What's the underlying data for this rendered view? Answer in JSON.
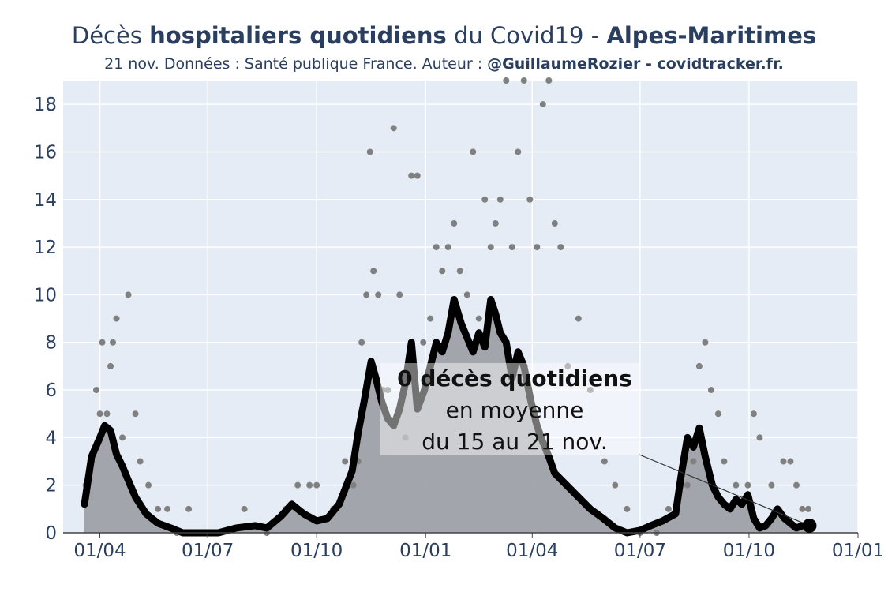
{
  "header": {
    "title_pre": "Décès ",
    "title_bold": "hospitaliers quotidiens",
    "title_mid": " du Covid19 - ",
    "title_region": "Alpes-Maritimes",
    "subtitle_plain": "21 nov. Données : Santé publique France. Auteur : ",
    "subtitle_bold": "@GuillaumeRozier - covidtracker.fr."
  },
  "annotation": {
    "line1": "0 décès quotidiens",
    "line2": "en moyenne",
    "line3": "du 15 au 21 nov."
  },
  "colors": {
    "plot_bg": "#e5ecf6",
    "line": "#000000",
    "area": "#9ea2a8",
    "dots": "#808080",
    "text": "#2a3f5f"
  },
  "chart_data": {
    "type": "line",
    "title": "Décès hospitaliers quotidiens du Covid19 - Alpes-Maritimes",
    "xlabel": "",
    "ylabel": "",
    "x_range": [
      "2020-03-01",
      "2022-01-01"
    ],
    "ylim": [
      0,
      19
    ],
    "y_ticks": [
      0,
      2,
      4,
      6,
      8,
      10,
      12,
      14,
      16,
      18
    ],
    "x_ticks": [
      {
        "date": "2020-04-01",
        "label": "01/04"
      },
      {
        "date": "2020-07-01",
        "label": "01/07"
      },
      {
        "date": "2020-10-01",
        "label": "01/10"
      },
      {
        "date": "2021-01-01",
        "label": "01/01"
      },
      {
        "date": "2021-04-01",
        "label": "01/04"
      },
      {
        "date": "2021-07-01",
        "label": "01/07"
      },
      {
        "date": "2021-10-01",
        "label": "01/10"
      },
      {
        "date": "2022-01-01",
        "label": "01/01"
      }
    ],
    "grid": true,
    "series": [
      {
        "style": "line-with-area",
        "x": [
          "2020-03-19",
          "2020-03-25",
          "2020-04-01",
          "2020-04-05",
          "2020-04-10",
          "2020-04-15",
          "2020-04-20",
          "2020-04-25",
          "2020-05-01",
          "2020-05-10",
          "2020-05-20",
          "2020-05-31",
          "2020-06-10",
          "2020-06-20",
          "2020-06-30",
          "2020-07-10",
          "2020-07-25",
          "2020-08-10",
          "2020-08-20",
          "2020-09-01",
          "2020-09-10",
          "2020-09-20",
          "2020-10-01",
          "2020-10-10",
          "2020-10-20",
          "2020-10-31",
          "2020-11-05",
          "2020-11-10",
          "2020-11-16",
          "2020-11-20",
          "2020-11-25",
          "2020-11-30",
          "2020-12-05",
          "2020-12-10",
          "2020-12-15",
          "2020-12-20",
          "2020-12-25",
          "2020-12-31",
          "2021-01-05",
          "2021-01-10",
          "2021-01-15",
          "2021-01-20",
          "2021-01-25",
          "2021-01-31",
          "2021-02-05",
          "2021-02-10",
          "2021-02-15",
          "2021-02-20",
          "2021-02-25",
          "2021-03-01",
          "2021-03-05",
          "2021-03-10",
          "2021-03-15",
          "2021-03-20",
          "2021-03-25",
          "2021-03-31",
          "2021-04-05",
          "2021-04-10",
          "2021-04-15",
          "2021-04-20",
          "2021-04-30",
          "2021-05-10",
          "2021-05-20",
          "2021-05-31",
          "2021-06-10",
          "2021-06-20",
          "2021-07-01",
          "2021-07-10",
          "2021-07-20",
          "2021-07-31",
          "2021-08-05",
          "2021-08-10",
          "2021-08-15",
          "2021-08-20",
          "2021-08-25",
          "2021-08-31",
          "2021-09-05",
          "2021-09-10",
          "2021-09-15",
          "2021-09-20",
          "2021-09-25",
          "2021-09-30",
          "2021-10-05",
          "2021-10-10",
          "2021-10-15",
          "2021-10-20",
          "2021-10-25",
          "2021-10-31",
          "2021-11-05",
          "2021-11-10",
          "2021-11-15",
          "2021-11-21"
        ],
        "values": [
          1.2,
          3.2,
          4.0,
          4.5,
          4.3,
          3.3,
          2.8,
          2.2,
          1.5,
          0.8,
          0.4,
          0.2,
          0.0,
          0.0,
          0.0,
          0.0,
          0.2,
          0.3,
          0.2,
          0.7,
          1.2,
          0.8,
          0.5,
          0.6,
          1.2,
          2.6,
          4.2,
          5.5,
          7.2,
          6.5,
          5.5,
          4.8,
          4.5,
          5.2,
          6.3,
          8.0,
          5.2,
          6.0,
          7.0,
          8.0,
          7.6,
          8.4,
          9.8,
          8.8,
          8.2,
          7.6,
          8.4,
          7.8,
          9.8,
          9.2,
          8.4,
          8.0,
          6.5,
          7.6,
          7.0,
          5.5,
          4.5,
          3.8,
          3.2,
          2.5,
          2.0,
          1.5,
          1.0,
          0.6,
          0.2,
          0.0,
          0.1,
          0.3,
          0.5,
          0.8,
          2.5,
          4.0,
          3.6,
          4.4,
          3.2,
          2.0,
          1.5,
          1.2,
          1.0,
          1.4,
          1.2,
          1.6,
          0.6,
          0.2,
          0.3,
          0.6,
          1.0,
          0.6,
          0.4,
          0.2,
          0.3,
          0.3
        ]
      },
      {
        "style": "scatter",
        "x": [
          "2020-03-20",
          "2020-03-25",
          "2020-03-29",
          "2020-04-01",
          "2020-04-03",
          "2020-04-07",
          "2020-04-10",
          "2020-04-12",
          "2020-04-15",
          "2020-04-20",
          "2020-04-25",
          "2020-05-01",
          "2020-05-05",
          "2020-05-12",
          "2020-05-20",
          "2020-05-28",
          "2020-06-05",
          "2020-06-15",
          "2020-06-25",
          "2020-07-10",
          "2020-08-01",
          "2020-08-20",
          "2020-09-05",
          "2020-09-15",
          "2020-09-25",
          "2020-10-01",
          "2020-10-15",
          "2020-10-25",
          "2020-11-01",
          "2020-11-05",
          "2020-11-08",
          "2020-11-12",
          "2020-11-15",
          "2020-11-18",
          "2020-11-22",
          "2020-11-26",
          "2020-11-30",
          "2020-12-05",
          "2020-12-10",
          "2020-12-15",
          "2020-12-20",
          "2020-12-25",
          "2020-12-30",
          "2021-01-05",
          "2021-01-10",
          "2021-01-15",
          "2021-01-20",
          "2021-01-25",
          "2021-01-30",
          "2021-02-05",
          "2021-02-10",
          "2021-02-15",
          "2021-02-20",
          "2021-02-25",
          "2021-03-01",
          "2021-03-05",
          "2021-03-10",
          "2021-03-15",
          "2021-03-20",
          "2021-03-25",
          "2021-03-30",
          "2021-04-05",
          "2021-04-10",
          "2021-04-15",
          "2021-04-20",
          "2021-04-25",
          "2021-05-01",
          "2021-05-10",
          "2021-05-20",
          "2021-06-01",
          "2021-06-10",
          "2021-06-20",
          "2021-07-01",
          "2021-07-15",
          "2021-07-25",
          "2021-08-05",
          "2021-08-10",
          "2021-08-15",
          "2021-08-20",
          "2021-08-25",
          "2021-08-30",
          "2021-09-05",
          "2021-09-10",
          "2021-09-20",
          "2021-09-30",
          "2021-10-05",
          "2021-10-10",
          "2021-10-20",
          "2021-10-30",
          "2021-11-05",
          "2021-11-10",
          "2021-11-15",
          "2021-11-20"
        ],
        "values": [
          2,
          3,
          6,
          5,
          8,
          5,
          7,
          8,
          9,
          4,
          10,
          5,
          3,
          2,
          1,
          1,
          0,
          1,
          0,
          0,
          1,
          0,
          1,
          2,
          2,
          2,
          1,
          3,
          2,
          3,
          8,
          10,
          16,
          11,
          10,
          6,
          6,
          17,
          10,
          4,
          15,
          15,
          8,
          9,
          12,
          11,
          12,
          13,
          11,
          10,
          16,
          9,
          14,
          12,
          13,
          14,
          19,
          12,
          16,
          19,
          14,
          12,
          18,
          19,
          13,
          12,
          7,
          9,
          6,
          3,
          2,
          1,
          0,
          0,
          1,
          2,
          2,
          3,
          7,
          8,
          6,
          5,
          3,
          2,
          2,
          5,
          4,
          2,
          3,
          3,
          2,
          1,
          1
        ]
      }
    ]
  }
}
